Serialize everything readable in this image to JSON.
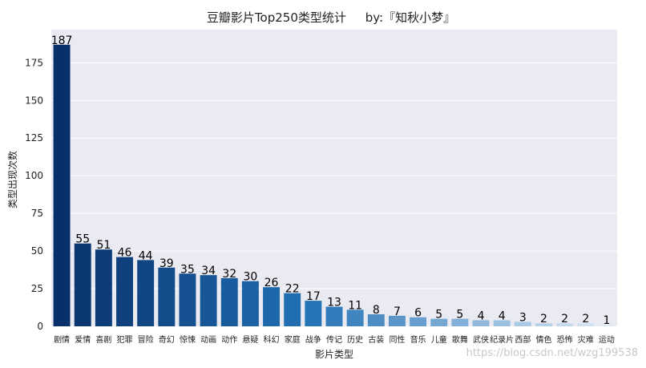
{
  "chart_data": {
    "type": "bar",
    "title": "豆瓣影片Top250类型统计     by:『知秋小梦』",
    "xlabel": "影片类型",
    "ylabel": "类型出现次数",
    "categories": [
      "剧情",
      "爱情",
      "喜剧",
      "犯罪",
      "冒险",
      "奇幻",
      "惊悚",
      "动画",
      "动作",
      "悬疑",
      "科幻",
      "家庭",
      "战争",
      "传记",
      "历史",
      "古装",
      "同性",
      "音乐",
      "儿童",
      "歌舞",
      "武侠",
      "纪录片",
      "西部",
      "情色",
      "恐怖",
      "灾难",
      "运动"
    ],
    "values": [
      187,
      55,
      51,
      46,
      44,
      39,
      35,
      34,
      32,
      30,
      26,
      22,
      17,
      13,
      11,
      8,
      7,
      6,
      5,
      5,
      4,
      4,
      3,
      2,
      2,
      2,
      1
    ],
    "ylim": [
      0,
      197
    ],
    "yticks": [
      0,
      25,
      50,
      75,
      100,
      125,
      150,
      175
    ],
    "grid": true,
    "palette": "Blues (dark to light)",
    "colors": {
      "bar_dark": "#08306b",
      "bar_light": "#deebf7",
      "plot_bg": "#eaeaf2",
      "grid": "#ffffff"
    }
  },
  "watermark": "https://blog.csdn.net/wzg199538"
}
